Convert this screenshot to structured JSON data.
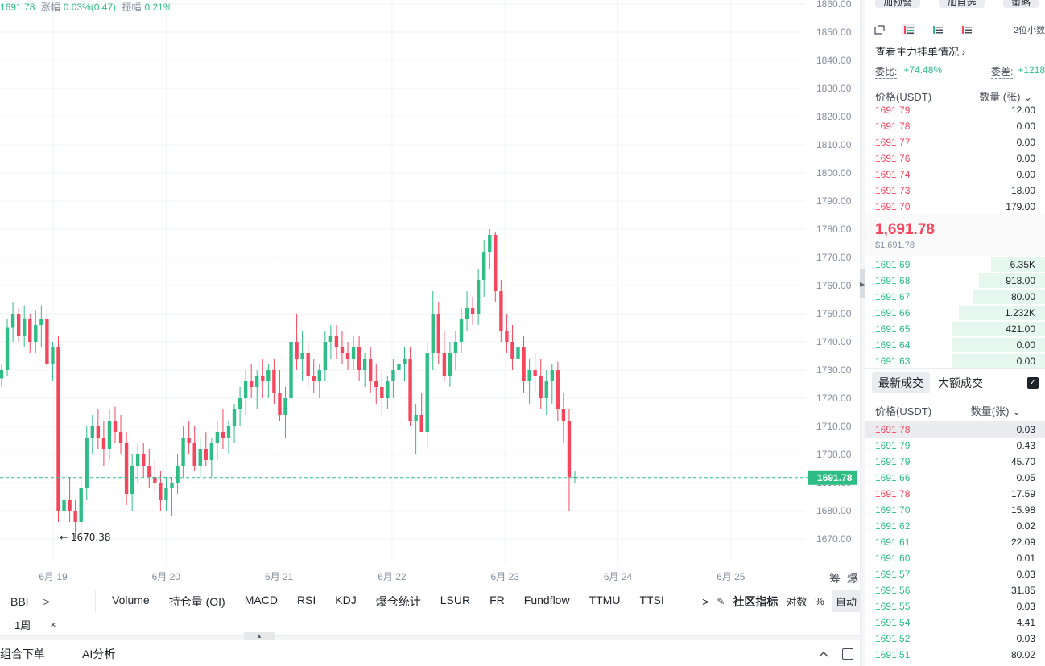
{
  "stats": {
    "price": "1691.78",
    "change_label": "涨幅",
    "change_value": "0.03%(0.47)",
    "amplitude_label": "振幅",
    "amplitude_value": "0.21%"
  },
  "chart": {
    "y_ticks": [
      "1860.00",
      "1850.00",
      "1840.00",
      "1830.00",
      "1820.00",
      "1810.00",
      "1800.00",
      "1790.00",
      "1780.00",
      "1770.00",
      "1760.00",
      "1750.00",
      "1740.00",
      "1730.00",
      "1720.00",
      "1710.00",
      "1700.00",
      "1690.00",
      "1680.00",
      "1670.00"
    ],
    "x_ticks": [
      "6月 19",
      "6月 20",
      "6月 21",
      "6月 22",
      "6月 23",
      "6月 24",
      "6月 25"
    ],
    "current_price_label": "1691.78",
    "low_marker": "← 1670.38",
    "corner_labels": [
      "筹",
      "爆"
    ],
    "colors": {
      "up": "#2ebd85",
      "down": "#f6465d",
      "grid": "#f2f3f5",
      "axis_text": "#848e9c"
    }
  },
  "chart_data": {
    "type": "candlestick",
    "ylim": [
      1665,
      1862
    ],
    "candles": [
      [
        1727,
        1732,
        1724,
        1730
      ],
      [
        1730,
        1748,
        1728,
        1745
      ],
      [
        1745,
        1754,
        1740,
        1750
      ],
      [
        1750,
        1752,
        1740,
        1742
      ],
      [
        1742,
        1753,
        1738,
        1748
      ],
      [
        1748,
        1750,
        1736,
        1740
      ],
      [
        1740,
        1751,
        1736,
        1746
      ],
      [
        1746,
        1753,
        1738,
        1748
      ],
      [
        1748,
        1752,
        1730,
        1732
      ],
      [
        1732,
        1740,
        1726,
        1738
      ],
      [
        1738,
        1742,
        1676,
        1680
      ],
      [
        1680,
        1690,
        1672,
        1684
      ],
      [
        1684,
        1692,
        1676,
        1680
      ],
      [
        1680,
        1684,
        1670,
        1676
      ],
      [
        1676,
        1692,
        1672,
        1688
      ],
      [
        1688,
        1710,
        1684,
        1706
      ],
      [
        1706,
        1714,
        1700,
        1710
      ],
      [
        1710,
        1716,
        1702,
        1706
      ],
      [
        1706,
        1712,
        1696,
        1702
      ],
      [
        1702,
        1716,
        1698,
        1712
      ],
      [
        1712,
        1717,
        1704,
        1708
      ],
      [
        1708,
        1714,
        1700,
        1704
      ],
      [
        1704,
        1708,
        1682,
        1686
      ],
      [
        1686,
        1700,
        1680,
        1696
      ],
      [
        1696,
        1704,
        1690,
        1700
      ],
      [
        1700,
        1704,
        1692,
        1696
      ],
      [
        1696,
        1702,
        1688,
        1692
      ],
      [
        1692,
        1698,
        1686,
        1690
      ],
      [
        1690,
        1694,
        1680,
        1684
      ],
      [
        1684,
        1692,
        1680,
        1688
      ],
      [
        1688,
        1692,
        1678,
        1690
      ],
      [
        1690,
        1700,
        1686,
        1696
      ],
      [
        1696,
        1710,
        1692,
        1706
      ],
      [
        1706,
        1712,
        1700,
        1704
      ],
      [
        1704,
        1710,
        1694,
        1696
      ],
      [
        1696,
        1706,
        1692,
        1702
      ],
      [
        1702,
        1708,
        1696,
        1698
      ],
      [
        1698,
        1706,
        1692,
        1704
      ],
      [
        1704,
        1712,
        1698,
        1708
      ],
      [
        1708,
        1716,
        1702,
        1706
      ],
      [
        1706,
        1712,
        1700,
        1710
      ],
      [
        1710,
        1718,
        1704,
        1716
      ],
      [
        1716,
        1724,
        1710,
        1720
      ],
      [
        1720,
        1730,
        1714,
        1726
      ],
      [
        1726,
        1732,
        1720,
        1724
      ],
      [
        1724,
        1730,
        1716,
        1728
      ],
      [
        1728,
        1734,
        1720,
        1726
      ],
      [
        1726,
        1732,
        1720,
        1730
      ],
      [
        1730,
        1734,
        1718,
        1722
      ],
      [
        1722,
        1730,
        1712,
        1714
      ],
      [
        1714,
        1724,
        1706,
        1720
      ],
      [
        1720,
        1744,
        1716,
        1740
      ],
      [
        1740,
        1750,
        1730,
        1734
      ],
      [
        1734,
        1744,
        1726,
        1736
      ],
      [
        1736,
        1740,
        1724,
        1728
      ],
      [
        1728,
        1734,
        1722,
        1726
      ],
      [
        1726,
        1732,
        1720,
        1730
      ],
      [
        1730,
        1744,
        1726,
        1740
      ],
      [
        1740,
        1746,
        1734,
        1742
      ],
      [
        1742,
        1746,
        1734,
        1738
      ],
      [
        1738,
        1744,
        1732,
        1736
      ],
      [
        1736,
        1740,
        1730,
        1734
      ],
      [
        1734,
        1742,
        1730,
        1738
      ],
      [
        1738,
        1742,
        1726,
        1730
      ],
      [
        1730,
        1736,
        1724,
        1734
      ],
      [
        1734,
        1738,
        1722,
        1726
      ],
      [
        1726,
        1732,
        1718,
        1724
      ],
      [
        1724,
        1730,
        1714,
        1720
      ],
      [
        1720,
        1728,
        1716,
        1726
      ],
      [
        1726,
        1734,
        1720,
        1730
      ],
      [
        1730,
        1736,
        1722,
        1732
      ],
      [
        1732,
        1738,
        1726,
        1734
      ],
      [
        1734,
        1738,
        1710,
        1712
      ],
      [
        1712,
        1718,
        1700,
        1714
      ],
      [
        1714,
        1722,
        1708,
        1708
      ],
      [
        1708,
        1740,
        1702,
        1736
      ],
      [
        1736,
        1758,
        1730,
        1750
      ],
      [
        1750,
        1754,
        1732,
        1736
      ],
      [
        1736,
        1744,
        1726,
        1728
      ],
      [
        1728,
        1740,
        1724,
        1736
      ],
      [
        1736,
        1744,
        1730,
        1740
      ],
      [
        1740,
        1752,
        1736,
        1748
      ],
      [
        1748,
        1758,
        1744,
        1752
      ],
      [
        1752,
        1756,
        1746,
        1750
      ],
      [
        1750,
        1766,
        1746,
        1762
      ],
      [
        1762,
        1776,
        1756,
        1772
      ],
      [
        1772,
        1780,
        1766,
        1778
      ],
      [
        1778,
        1779,
        1754,
        1758
      ],
      [
        1758,
        1762,
        1740,
        1744
      ],
      [
        1744,
        1750,
        1736,
        1740
      ],
      [
        1740,
        1746,
        1730,
        1734
      ],
      [
        1734,
        1742,
        1728,
        1738
      ],
      [
        1738,
        1742,
        1722,
        1726
      ],
      [
        1726,
        1734,
        1718,
        1730
      ],
      [
        1730,
        1736,
        1722,
        1728
      ],
      [
        1728,
        1734,
        1716,
        1720
      ],
      [
        1720,
        1730,
        1714,
        1726
      ],
      [
        1726,
        1732,
        1718,
        1730
      ],
      [
        1730,
        1733,
        1712,
        1716
      ],
      [
        1716,
        1722,
        1704,
        1712
      ],
      [
        1712,
        1716,
        1680,
        1692
      ],
      [
        1692,
        1694,
        1690,
        1692
      ]
    ]
  },
  "indicators": {
    "bbi": "BBI",
    "bbi_arrow": ">",
    "items": [
      "Volume",
      "持仓量 (OI)",
      "MACD",
      "RSI",
      "KDJ",
      "爆仓统计",
      "LSUR",
      "FR",
      "Fundflow",
      "TTMU",
      "TTSI"
    ],
    "more_arrow": ">",
    "edit_icon": "✎",
    "community": "社区指标",
    "log_label": "对数",
    "percent_label": "%",
    "auto_label": "自动"
  },
  "interval": {
    "label": "1周",
    "close": "×"
  },
  "bottom_tabs": {
    "combo": "组合下单",
    "ai": "AI分析"
  },
  "book": {
    "top_buttons": [
      "加预警",
      "加自选",
      "策略"
    ],
    "precision": "2位小数",
    "main_orders_link": "查看主力挂单情况",
    "ratio_label": "委比:",
    "ratio_value": "+74.48%",
    "diff_label": "委差:",
    "diff_value": "+1218",
    "header_price": "价格(USDT)",
    "header_qty": "数量 (张)",
    "asks": [
      [
        "1691.79",
        "12.00"
      ],
      [
        "1691.78",
        "0.00"
      ],
      [
        "1691.77",
        "0.00"
      ],
      [
        "1691.76",
        "0.00"
      ],
      [
        "1691.74",
        "0.00"
      ],
      [
        "1691.73",
        "18.00"
      ],
      [
        "1691.70",
        "179.00"
      ]
    ],
    "last_price": "1,691.78",
    "last_usd": "$1,691.78",
    "bids": [
      [
        "1691.69",
        "6.35K",
        0.3
      ],
      [
        "1691.68",
        "918.00",
        0.37
      ],
      [
        "1691.67",
        "80.00",
        0.4
      ],
      [
        "1691.66",
        "1.232K",
        0.48
      ],
      [
        "1691.65",
        "421.00",
        0.52
      ],
      [
        "1691.64",
        "0.00",
        0.52
      ],
      [
        "1691.63",
        "0.00",
        0.52
      ]
    ],
    "trades_tab_latest": "最新成交",
    "trades_tab_large": "大额成交",
    "trades_header_price": "价格(USDT)",
    "trades_header_qty": "数量(张)",
    "trades": [
      [
        "1691.78",
        "0.03",
        "sell"
      ],
      [
        "1691.79",
        "0.43",
        "buy"
      ],
      [
        "1691.79",
        "45.70",
        "buy"
      ],
      [
        "1691.66",
        "0.05",
        "buy"
      ],
      [
        "1691.78",
        "17.59",
        "sell"
      ],
      [
        "1691.70",
        "15.98",
        "buy"
      ],
      [
        "1691.62",
        "0.02",
        "buy"
      ],
      [
        "1691.61",
        "22.09",
        "buy"
      ],
      [
        "1691.60",
        "0.01",
        "buy"
      ],
      [
        "1691.57",
        "0.03",
        "buy"
      ],
      [
        "1691.56",
        "31.85",
        "buy"
      ],
      [
        "1691.55",
        "0.03",
        "buy"
      ],
      [
        "1691.54",
        "4.41",
        "buy"
      ],
      [
        "1691.52",
        "0.03",
        "buy"
      ],
      [
        "1691.51",
        "80.02",
        "buy"
      ]
    ]
  }
}
